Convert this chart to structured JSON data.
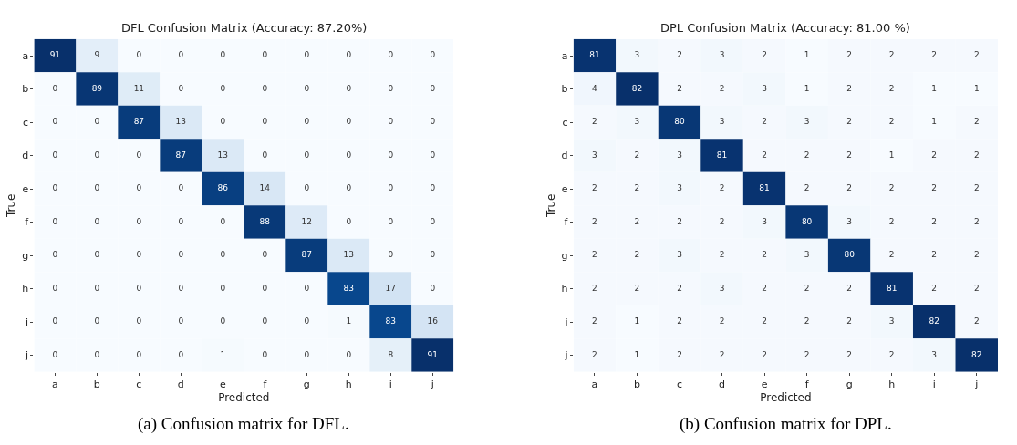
{
  "chart_data": [
    {
      "type": "heatmap",
      "title": "DFL Confusion Matrix (Accuracy: 87.20%)",
      "xlabel": "Predicted",
      "ylabel": "True",
      "categories": [
        "a",
        "b",
        "c",
        "d",
        "e",
        "f",
        "g",
        "h",
        "i",
        "j"
      ],
      "y_categories": [
        "a",
        "b",
        "c",
        "d",
        "e",
        "f",
        "g",
        "h",
        "i",
        "j"
      ],
      "cells": [
        [
          91,
          9,
          0,
          0,
          0,
          0,
          0,
          0,
          0,
          0
        ],
        [
          0,
          89,
          11,
          0,
          0,
          0,
          0,
          0,
          0,
          0
        ],
        [
          0,
          0,
          87,
          13,
          0,
          0,
          0,
          0,
          0,
          0
        ],
        [
          0,
          0,
          0,
          87,
          13,
          0,
          0,
          0,
          0,
          0
        ],
        [
          0,
          0,
          0,
          0,
          86,
          14,
          0,
          0,
          0,
          0
        ],
        [
          0,
          0,
          0,
          0,
          0,
          88,
          12,
          0,
          0,
          0
        ],
        [
          0,
          0,
          0,
          0,
          0,
          0,
          87,
          13,
          0,
          0
        ],
        [
          0,
          0,
          0,
          0,
          0,
          0,
          0,
          83,
          17,
          0
        ],
        [
          0,
          0,
          0,
          0,
          0,
          0,
          0,
          1,
          83,
          16
        ],
        [
          0,
          0,
          0,
          0,
          1,
          0,
          0,
          0,
          8,
          91
        ]
      ],
      "data_labels": true,
      "annotations": [
        "(a) Confusion matrix for DFL."
      ]
    },
    {
      "type": "heatmap",
      "title": "DPL Confusion Matrix (Accuracy: 81.00 %)",
      "xlabel": "Predicted",
      "ylabel": "True",
      "categories": [
        "a",
        "b",
        "c",
        "d",
        "e",
        "f",
        "g",
        "h",
        "i",
        "j"
      ],
      "y_categories": [
        "a",
        "b",
        "c",
        "d",
        "e",
        "f",
        "g",
        "h",
        "i",
        "j"
      ],
      "cells": [
        [
          81,
          3,
          2,
          3,
          2,
          1,
          2,
          2,
          2,
          2
        ],
        [
          4,
          82,
          2,
          2,
          3,
          1,
          2,
          2,
          1,
          1
        ],
        [
          2,
          3,
          80,
          3,
          2,
          3,
          2,
          2,
          1,
          2
        ],
        [
          3,
          2,
          3,
          81,
          2,
          2,
          2,
          1,
          2,
          2
        ],
        [
          2,
          2,
          3,
          2,
          81,
          2,
          2,
          2,
          2,
          2
        ],
        [
          2,
          2,
          2,
          2,
          3,
          80,
          3,
          2,
          2,
          2
        ],
        [
          2,
          2,
          3,
          2,
          2,
          3,
          80,
          2,
          2,
          2
        ],
        [
          2,
          2,
          2,
          3,
          2,
          2,
          2,
          81,
          2,
          2
        ],
        [
          2,
          1,
          2,
          2,
          2,
          2,
          2,
          3,
          82,
          2
        ],
        [
          2,
          1,
          2,
          2,
          2,
          2,
          2,
          2,
          3,
          82
        ]
      ],
      "data_labels": true,
      "annotations": [
        "(b) Confusion matrix for DPL."
      ]
    }
  ]
}
